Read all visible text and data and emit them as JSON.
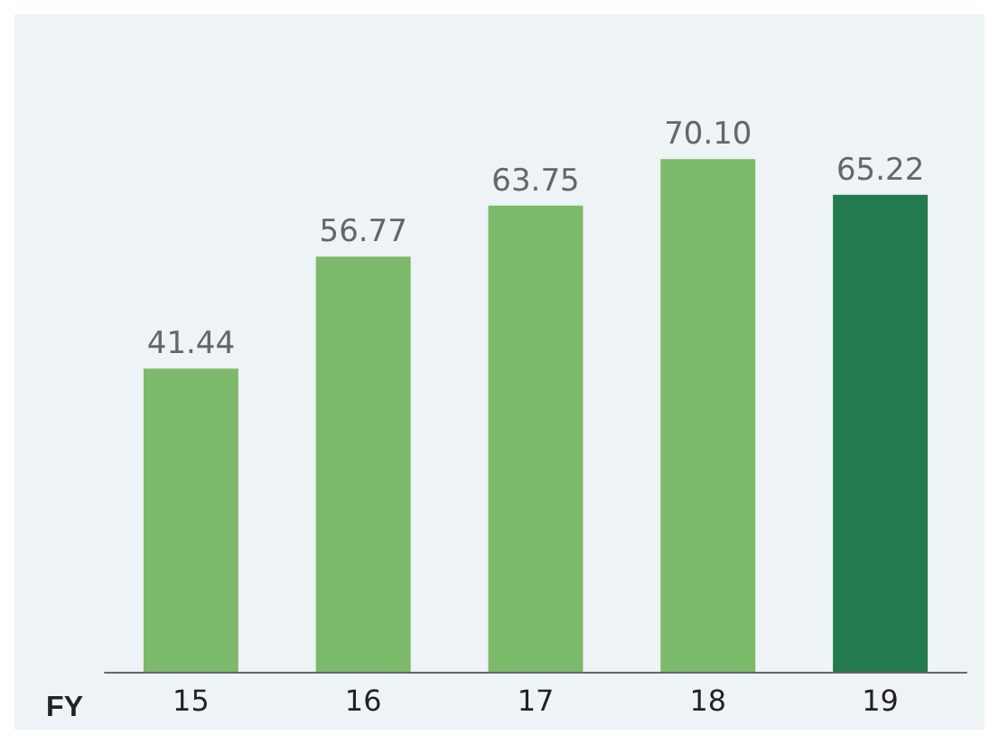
{
  "chart_data": {
    "type": "bar",
    "xlabel": "FY",
    "categories": [
      "15",
      "16",
      "17",
      "18",
      "19"
    ],
    "values": [
      41.44,
      56.77,
      63.75,
      70.1,
      65.22
    ],
    "colors": [
      "#7db96b",
      "#7db96b",
      "#7db96b",
      "#7db96b",
      "#237a4f"
    ],
    "value_labels": [
      "41.44",
      "56.77",
      "63.75",
      "70.10",
      "65.22"
    ]
  }
}
